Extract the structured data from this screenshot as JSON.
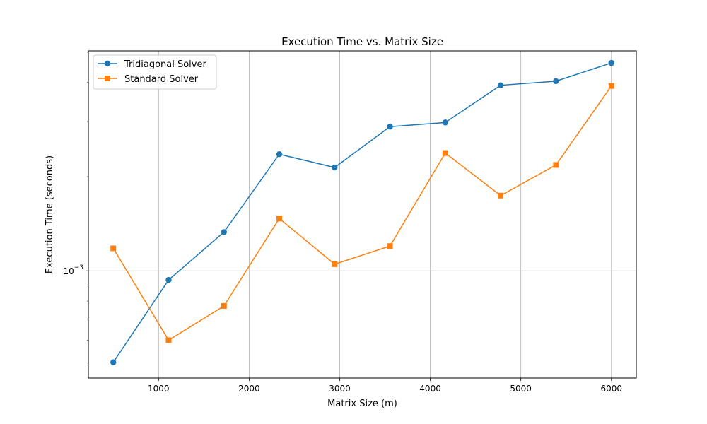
{
  "chart_data": {
    "type": "line",
    "title": "Execution Time vs. Matrix Size",
    "xlabel": "Matrix Size (m)",
    "ylabel": "Execution Time (seconds)",
    "x": [
      500,
      1111,
      1722,
      2333,
      2944,
      3555,
      4166,
      4777,
      5388,
      6000
    ],
    "series": [
      {
        "name": "Tridiagonal Solver",
        "color": "#1f77b4",
        "marker": "circle",
        "values": [
          0.00051,
          0.000935,
          0.00133,
          0.00236,
          0.00214,
          0.00289,
          0.00298,
          0.00392,
          0.00404,
          0.00462
        ]
      },
      {
        "name": "Standard Solver",
        "color": "#ff7f0e",
        "marker": "square",
        "values": [
          0.00118,
          0.0006,
          0.000772,
          0.00147,
          0.00105,
          0.0012,
          0.00238,
          0.00174,
          0.00218,
          0.0039
        ]
      }
    ],
    "xlim": [
      225,
      6275
    ],
    "ylim": [
      0.000454,
      0.00505
    ],
    "y_scale": "log",
    "xticks": [
      1000,
      2000,
      3000,
      4000,
      5000,
      6000
    ],
    "xtick_labels": [
      "1000",
      "2000",
      "3000",
      "4000",
      "5000",
      "6000"
    ],
    "yticks": [
      0.001
    ],
    "ytick_labels": [
      "10−3"
    ],
    "grid": true,
    "legend_position": "upper-left"
  }
}
